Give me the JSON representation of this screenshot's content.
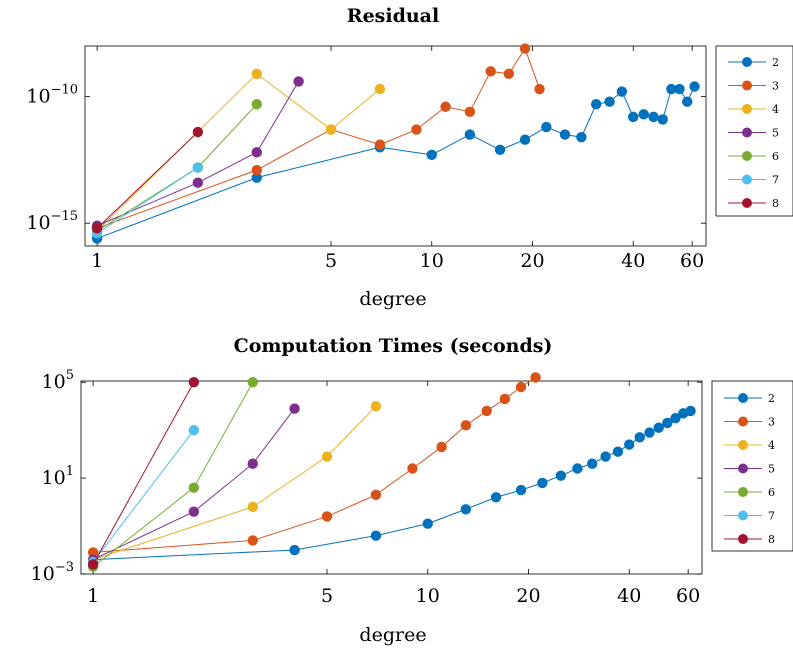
{
  "chart_data": [
    {
      "type": "line",
      "title": "Residual",
      "xlabel": "degree",
      "ylabel": "",
      "xscale": "log",
      "yscale": "log",
      "xlim": [
        0.92,
        66
      ],
      "ylim_exponent": [
        -15.9,
        -8.0
      ],
      "xticks": [
        1,
        5,
        10,
        20,
        40,
        60
      ],
      "yticks": [
        {
          "value": -10,
          "base": "10",
          "exp": "−10"
        },
        {
          "value": -15,
          "base": "10",
          "exp": "−15"
        }
      ],
      "legend": "right",
      "series": [
        {
          "name": "2",
          "color": "#0072BD",
          "x": [
            1,
            3,
            7,
            10,
            13,
            16,
            19,
            22,
            25,
            28,
            31,
            34,
            37,
            40,
            43,
            46,
            49,
            52,
            55,
            58,
            61
          ],
          "log10_y": [
            -15.6,
            -13.2,
            -12.0,
            -12.3,
            -11.5,
            -12.1,
            -11.7,
            -11.2,
            -11.5,
            -11.6,
            -10.3,
            -10.2,
            -9.8,
            -10.8,
            -10.7,
            -10.8,
            -10.9,
            -9.7,
            -9.7,
            -10.2,
            -9.6
          ]
        },
        {
          "name": "3",
          "color": "#D95319",
          "x": [
            1,
            3,
            5,
            7,
            9,
            11,
            13,
            15,
            17,
            19,
            21
          ],
          "log10_y": [
            -15.2,
            -12.9,
            -11.3,
            -11.9,
            -11.3,
            -10.4,
            -10.6,
            -9.0,
            -9.1,
            -8.1,
            -9.7
          ]
        },
        {
          "name": "4",
          "color": "#EDB120",
          "x": [
            1,
            3,
            5,
            7
          ],
          "log10_y": [
            -15.3,
            -9.1,
            -11.3,
            -9.7
          ]
        },
        {
          "name": "5",
          "color": "#7E2F8E",
          "x": [
            1,
            2,
            3,
            4
          ],
          "log10_y": [
            -15.1,
            -13.4,
            -12.2,
            -9.4
          ]
        },
        {
          "name": "6",
          "color": "#77AC30",
          "x": [
            1,
            2,
            3
          ],
          "log10_y": [
            -15.3,
            -12.8,
            -10.3
          ]
        },
        {
          "name": "7",
          "color": "#4DBEEE",
          "x": [
            1,
            2
          ],
          "log10_y": [
            -15.4,
            -12.8
          ]
        },
        {
          "name": "8",
          "color": "#A2142F",
          "x": [
            1,
            2
          ],
          "log10_y": [
            -15.2,
            -11.4
          ]
        }
      ]
    },
    {
      "type": "line",
      "title": "Computation Times (seconds)",
      "xlabel": "degree",
      "ylabel": "",
      "xscale": "log",
      "yscale": "log",
      "xlim": [
        0.92,
        66
      ],
      "ylim_exponent": [
        -3.0,
        5.05
      ],
      "xticks": [
        1,
        5,
        10,
        20,
        40,
        60
      ],
      "yticks": [
        {
          "value": 5,
          "base": "10",
          "exp": "5"
        },
        {
          "value": 1,
          "base": "10",
          "exp": "1"
        },
        {
          "value": -3,
          "base": "10",
          "exp": "−3"
        }
      ],
      "legend": "right",
      "series": [
        {
          "name": "2",
          "color": "#0072BD",
          "x": [
            1,
            4,
            7,
            10,
            13,
            16,
            19,
            22,
            25,
            28,
            31,
            34,
            37,
            40,
            43,
            46,
            49,
            52,
            55,
            58,
            61
          ],
          "log10_y": [
            -2.4,
            -2.0,
            -1.4,
            -0.9,
            -0.3,
            0.2,
            0.5,
            0.8,
            1.1,
            1.4,
            1.6,
            1.9,
            2.1,
            2.4,
            2.7,
            2.9,
            3.1,
            3.3,
            3.5,
            3.7,
            3.8
          ]
        },
        {
          "name": "3",
          "color": "#D95319",
          "x": [
            1,
            3,
            5,
            7,
            9,
            11,
            13,
            15,
            17,
            19,
            21
          ],
          "log10_y": [
            -2.1,
            -1.6,
            -0.6,
            0.3,
            1.4,
            2.3,
            3.2,
            3.8,
            4.3,
            4.8,
            5.2
          ]
        },
        {
          "name": "4",
          "color": "#EDB120",
          "x": [
            1,
            3,
            5,
            7
          ],
          "log10_y": [
            -2.4,
            -0.2,
            1.9,
            4.0
          ]
        },
        {
          "name": "5",
          "color": "#7E2F8E",
          "x": [
            1,
            2,
            3,
            4
          ],
          "log10_y": [
            -2.4,
            -0.4,
            1.6,
            3.9
          ]
        },
        {
          "name": "6",
          "color": "#77AC30",
          "x": [
            1,
            2,
            3
          ],
          "log10_y": [
            -2.7,
            0.6,
            5.0
          ]
        },
        {
          "name": "7",
          "color": "#4DBEEE",
          "x": [
            1,
            2
          ],
          "log10_y": [
            -2.5,
            3.0
          ]
        },
        {
          "name": "8",
          "color": "#A2142F",
          "x": [
            1,
            2
          ],
          "log10_y": [
            -2.6,
            5.0
          ]
        }
      ]
    }
  ]
}
